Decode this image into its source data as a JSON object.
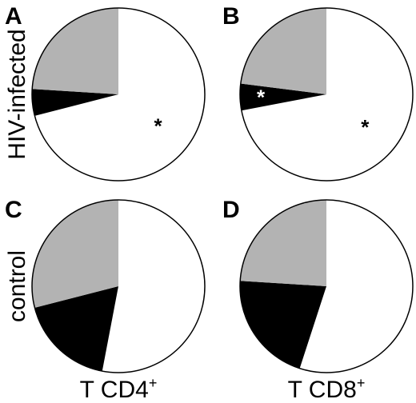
{
  "figure": {
    "row_labels": [
      "HIV-infected",
      "control"
    ],
    "col_labels": [
      {
        "main": "T CD4",
        "sup": "+"
      },
      {
        "main": "T CD8",
        "sup": "+"
      }
    ]
  },
  "colors": {
    "white": "#ffffff",
    "gray": "#b3b3b3",
    "black": "#000000",
    "outline": "#000000"
  },
  "chart_data": [
    {
      "type": "pie",
      "panel": "A",
      "slices": [
        {
          "color": "white",
          "value": 71,
          "marker": "*"
        },
        {
          "color": "black",
          "value": 5,
          "marker": ""
        },
        {
          "color": "gray",
          "value": 24,
          "marker": ""
        }
      ]
    },
    {
      "type": "pie",
      "panel": "B",
      "slices": [
        {
          "color": "white",
          "value": 72,
          "marker": "*"
        },
        {
          "color": "black",
          "value": 5,
          "marker": "*"
        },
        {
          "color": "gray",
          "value": 23,
          "marker": ""
        }
      ]
    },
    {
      "type": "pie",
      "panel": "C",
      "slices": [
        {
          "color": "white",
          "value": 53,
          "marker": ""
        },
        {
          "color": "black",
          "value": 18,
          "marker": ""
        },
        {
          "color": "gray",
          "value": 29,
          "marker": ""
        }
      ]
    },
    {
      "type": "pie",
      "panel": "D",
      "slices": [
        {
          "color": "white",
          "value": 55,
          "marker": ""
        },
        {
          "color": "black",
          "value": 21,
          "marker": ""
        },
        {
          "color": "gray",
          "value": 24,
          "marker": ""
        }
      ]
    }
  ]
}
